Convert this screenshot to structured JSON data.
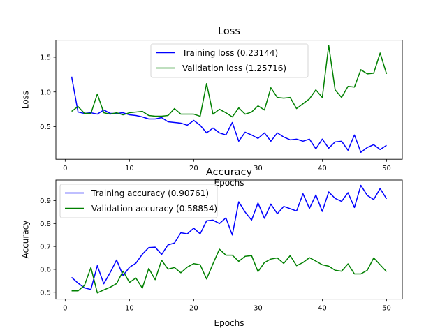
{
  "chart_data": [
    {
      "type": "line",
      "title": "Loss",
      "xlabel": "Epochs",
      "ylabel": "Loss",
      "xlim": [
        -1.45,
        52.45
      ],
      "ylim": [
        0.03,
        1.745
      ],
      "x_ticks": [
        0,
        10,
        20,
        30,
        40,
        50
      ],
      "y_ticks": [
        0.5,
        1.0,
        1.5
      ],
      "y_tick_labels": [
        "0.5",
        "1.0",
        "1.5"
      ],
      "grid": false,
      "legend_position": "top-center",
      "x": [
        1,
        2,
        3,
        4,
        5,
        6,
        7,
        8,
        9,
        10,
        11,
        12,
        13,
        14,
        15,
        16,
        17,
        18,
        19,
        20,
        21,
        22,
        23,
        24,
        25,
        26,
        27,
        28,
        29,
        30,
        31,
        32,
        33,
        34,
        35,
        36,
        37,
        38,
        39,
        40,
        41,
        42,
        43,
        44,
        45,
        46,
        47,
        48,
        49,
        50
      ],
      "series": [
        {
          "name": "Training loss (0.23144)",
          "color": "#0000ff",
          "values": [
            1.22,
            0.71,
            0.69,
            0.7,
            0.68,
            0.74,
            0.69,
            0.69,
            0.7,
            0.67,
            0.66,
            0.64,
            0.61,
            0.61,
            0.63,
            0.57,
            0.56,
            0.55,
            0.52,
            0.59,
            0.52,
            0.41,
            0.48,
            0.41,
            0.38,
            0.56,
            0.29,
            0.42,
            0.38,
            0.33,
            0.41,
            0.29,
            0.41,
            0.35,
            0.31,
            0.32,
            0.29,
            0.32,
            0.18,
            0.32,
            0.19,
            0.28,
            0.29,
            0.16,
            0.38,
            0.13,
            0.2,
            0.24,
            0.17,
            0.23
          ]
        },
        {
          "name": "Validation loss (1.25716)",
          "color": "#008000",
          "values": [
            0.72,
            0.79,
            0.69,
            0.69,
            0.97,
            0.7,
            0.68,
            0.7,
            0.67,
            0.7,
            0.71,
            0.72,
            0.66,
            0.65,
            0.65,
            0.66,
            0.76,
            0.68,
            0.68,
            0.68,
            0.65,
            1.12,
            0.68,
            0.75,
            0.7,
            0.64,
            0.77,
            0.68,
            0.71,
            0.8,
            0.74,
            1.06,
            0.92,
            0.91,
            0.92,
            0.76,
            0.83,
            0.9,
            1.03,
            0.92,
            1.67,
            1.03,
            0.92,
            1.08,
            1.07,
            1.32,
            1.26,
            1.27,
            1.56,
            1.26
          ]
        }
      ]
    },
    {
      "type": "line",
      "title": "Accuracy",
      "xlabel": "Epochs",
      "ylabel": "Accuracy",
      "xlim": [
        -1.45,
        52.45
      ],
      "ylim": [
        0.47,
        0.99
      ],
      "x_ticks": [
        0,
        10,
        20,
        30,
        40,
        50
      ],
      "y_ticks": [
        0.5,
        0.6,
        0.7,
        0.8,
        0.9
      ],
      "y_tick_labels": [
        "0.5",
        "0.6",
        "0.7",
        "0.8",
        "0.9"
      ],
      "grid": false,
      "legend_position": "top-left",
      "x": [
        1,
        2,
        3,
        4,
        5,
        6,
        7,
        8,
        9,
        10,
        11,
        12,
        13,
        14,
        15,
        16,
        17,
        18,
        19,
        20,
        21,
        22,
        23,
        24,
        25,
        26,
        27,
        28,
        29,
        30,
        31,
        32,
        33,
        34,
        35,
        36,
        37,
        38,
        39,
        40,
        41,
        42,
        43,
        44,
        45,
        46,
        47,
        48,
        49,
        50
      ],
      "series": [
        {
          "name": "Training accuracy (0.90761)",
          "color": "#0000ff",
          "values": [
            0.565,
            0.54,
            0.519,
            0.512,
            0.616,
            0.537,
            0.586,
            0.641,
            0.573,
            0.609,
            0.627,
            0.666,
            0.695,
            0.697,
            0.665,
            0.707,
            0.715,
            0.76,
            0.755,
            0.78,
            0.755,
            0.812,
            0.815,
            0.8,
            0.825,
            0.75,
            0.895,
            0.85,
            0.815,
            0.89,
            0.823,
            0.885,
            0.843,
            0.875,
            0.865,
            0.855,
            0.93,
            0.866,
            0.925,
            0.853,
            0.938,
            0.91,
            0.897,
            0.935,
            0.87,
            0.967,
            0.923,
            0.905,
            0.953,
            0.908
          ]
        },
        {
          "name": "Validation accuracy (0.58854)",
          "color": "#008000",
          "values": [
            0.506,
            0.506,
            0.53,
            0.608,
            0.497,
            0.51,
            0.522,
            0.538,
            0.592,
            0.543,
            0.562,
            0.518,
            0.604,
            0.555,
            0.64,
            0.601,
            0.608,
            0.585,
            0.61,
            0.625,
            0.62,
            0.558,
            0.625,
            0.688,
            0.662,
            0.662,
            0.635,
            0.657,
            0.66,
            0.59,
            0.63,
            0.645,
            0.65,
            0.626,
            0.66,
            0.616,
            0.63,
            0.651,
            0.636,
            0.62,
            0.614,
            0.596,
            0.592,
            0.624,
            0.58,
            0.58,
            0.596,
            0.65,
            0.62,
            0.59
          ]
        }
      ]
    }
  ]
}
